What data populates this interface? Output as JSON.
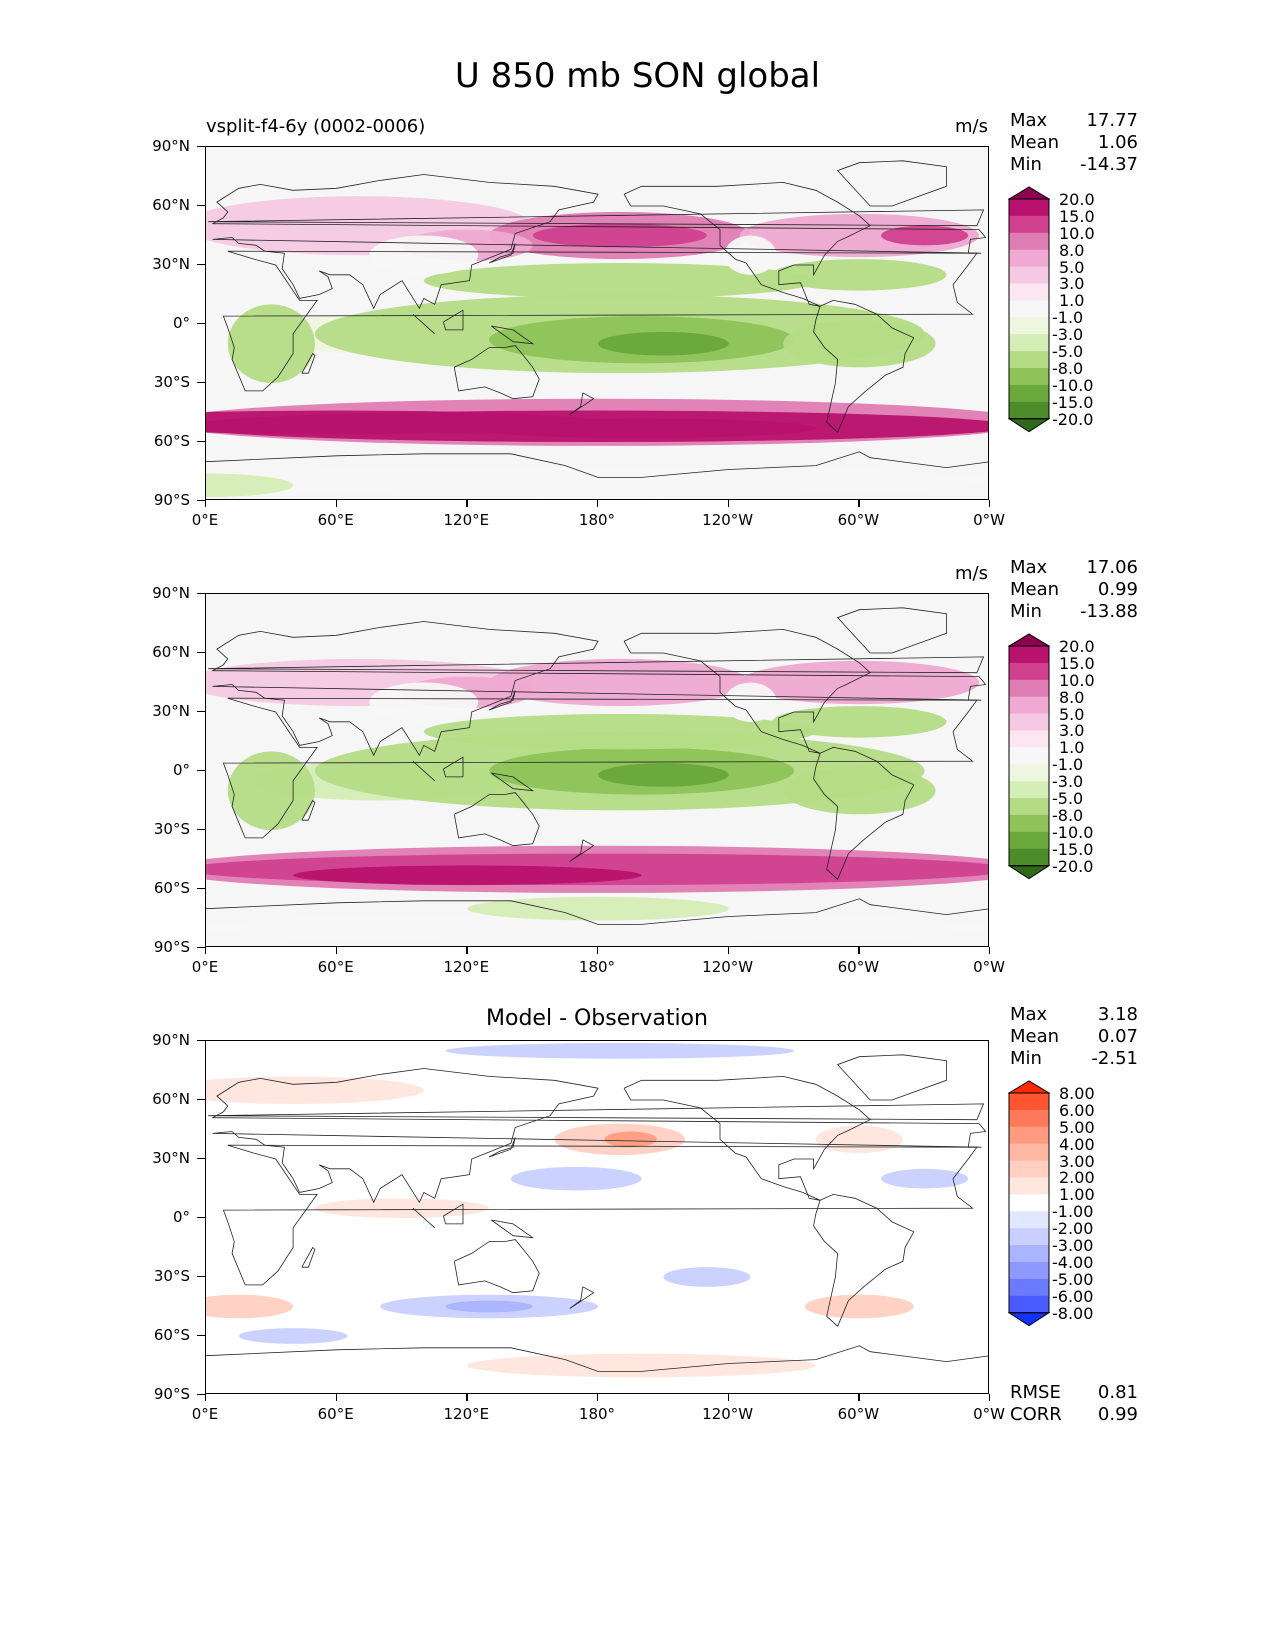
{
  "figure": {
    "title": "U 850 mb SON global",
    "lat_ticks": [
      "90°N",
      "60°N",
      "30°N",
      "0°",
      "30°S",
      "60°S",
      "90°S"
    ],
    "lon_ticks": [
      "0°E",
      "60°E",
      "120°E",
      "180°",
      "120°W",
      "60°W",
      "0°W"
    ]
  },
  "panels": [
    {
      "label": "vsplit-f4-6y (0002-0006)",
      "units": "m/s",
      "stats": {
        "max_label": "Max",
        "max": "17.77",
        "mean_label": "Mean",
        "mean": "1.06",
        "min_label": "Min",
        "min": "-14.37"
      },
      "colorbar": {
        "labels": [
          "20.0",
          "15.0",
          "10.0",
          "8.0",
          "5.0",
          "3.0",
          "1.0",
          "-1.0",
          "-3.0",
          "-5.0",
          "-8.0",
          "-10.0",
          "-15.0",
          "-20.0"
        ],
        "colors": [
          "#8e0152",
          "#b8126e",
          "#d0408f",
          "#e07cb4",
          "#efa9d2",
          "#f5c9e4",
          "#fbe6f1",
          "#f7f7f7",
          "#eef6e0",
          "#d5edb6",
          "#b4dc86",
          "#8dc359",
          "#6aa83c",
          "#4d8c2b",
          "#2e6a1a"
        ]
      }
    },
    {
      "label": "",
      "units": "m/s",
      "stats": {
        "max_label": "Max",
        "max": "17.06",
        "mean_label": "Mean",
        "mean": "0.99",
        "min_label": "Min",
        "min": "-13.88"
      },
      "colorbar": {
        "labels": [
          "20.0",
          "15.0",
          "10.0",
          "8.0",
          "5.0",
          "3.0",
          "1.0",
          "-1.0",
          "-3.0",
          "-5.0",
          "-8.0",
          "-10.0",
          "-15.0",
          "-20.0"
        ],
        "colors": [
          "#8e0152",
          "#b8126e",
          "#d0408f",
          "#e07cb4",
          "#efa9d2",
          "#f5c9e4",
          "#fbe6f1",
          "#f7f7f7",
          "#eef6e0",
          "#d5edb6",
          "#b4dc86",
          "#8dc359",
          "#6aa83c",
          "#4d8c2b",
          "#2e6a1a"
        ]
      }
    },
    {
      "label": "Model - Observation",
      "units": "",
      "stats": {
        "max_label": "Max",
        "max": "3.18",
        "mean_label": "Mean",
        "mean": "0.07",
        "min_label": "Min",
        "min": "-2.51"
      },
      "colorbar": {
        "labels": [
          "8.00",
          "6.00",
          "5.00",
          "4.00",
          "3.00",
          "2.00",
          "1.00",
          "-1.00",
          "-2.00",
          "-3.00",
          "-4.00",
          "-5.00",
          "-6.00",
          "-8.00"
        ],
        "colors": [
          "#ff2a00",
          "#ff5533",
          "#ff7a5a",
          "#ff9c80",
          "#ffb8a3",
          "#ffd0c2",
          "#ffe6de",
          "#ffffff",
          "#e2e6ff",
          "#c9d0ff",
          "#aab4ff",
          "#8d99ff",
          "#6b7bff",
          "#4a5cff",
          "#1432ff"
        ]
      },
      "extra_stats": {
        "rmse_label": "RMSE",
        "rmse": "0.81",
        "corr_label": "CORR",
        "corr": "0.99"
      }
    }
  ],
  "chart_data": [
    {
      "type": "heatmap",
      "title": "vsplit-f4-6y (0002-0006)",
      "units": "m/s",
      "xlim": [
        0,
        360
      ],
      "ylim": [
        -90,
        90
      ],
      "levels": [
        -20,
        -15,
        -10,
        -8,
        -5,
        -3,
        -1,
        1,
        3,
        5,
        8,
        10,
        15,
        20
      ],
      "bands": [
        {
          "lat": 45,
          "lon": 75,
          "value": 15
        },
        {
          "lat": 45,
          "lon": 190,
          "value": 15
        },
        {
          "lat": 45,
          "lon": 300,
          "value": 10
        },
        {
          "lat": 10,
          "lon": 200,
          "value": -10
        },
        {
          "lat": -8,
          "lon": 90,
          "value": -8
        },
        {
          "lat": -50,
          "lon": 180,
          "value": 15
        },
        {
          "lat": -50,
          "lon": 60,
          "value": 15
        }
      ]
    },
    {
      "type": "heatmap",
      "title": "",
      "units": "m/s",
      "xlim": [
        0,
        360
      ],
      "ylim": [
        -90,
        90
      ],
      "levels": [
        -20,
        -15,
        -10,
        -8,
        -5,
        -3,
        -1,
        1,
        3,
        5,
        8,
        10,
        15,
        20
      ],
      "bands": [
        {
          "lat": 42,
          "lon": 75,
          "value": 10
        },
        {
          "lat": 45,
          "lon": 190,
          "value": 10
        },
        {
          "lat": 45,
          "lon": 300,
          "value": 10
        },
        {
          "lat": 5,
          "lon": 200,
          "value": -10
        },
        {
          "lat": -8,
          "lon": 90,
          "value": -8
        },
        {
          "lat": -50,
          "lon": 180,
          "value": 15
        },
        {
          "lat": -50,
          "lon": 60,
          "value": 15
        }
      ]
    },
    {
      "type": "heatmap",
      "title": "Model - Observation",
      "units": "",
      "xlim": [
        0,
        360
      ],
      "ylim": [
        -90,
        90
      ],
      "levels": [
        -8,
        -6,
        -5,
        -4,
        -3,
        -2,
        -1,
        1,
        2,
        3,
        4,
        5,
        6,
        8
      ],
      "bands": [
        {
          "lat": 40,
          "lon": 190,
          "value": 3
        },
        {
          "lat": 20,
          "lon": 170,
          "value": -2
        },
        {
          "lat": -45,
          "lon": 15,
          "value": 2
        },
        {
          "lat": -45,
          "lon": 130,
          "value": -2
        },
        {
          "lat": -45,
          "lon": 300,
          "value": 2
        }
      ]
    }
  ]
}
